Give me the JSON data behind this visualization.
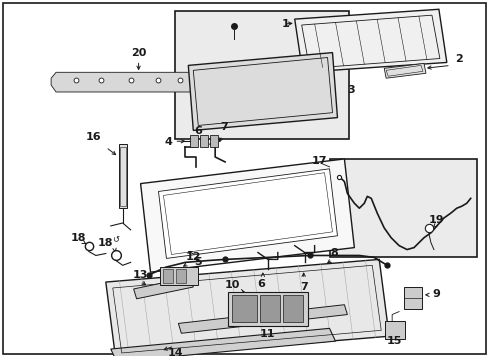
{
  "bg_color": "#ffffff",
  "fig_width": 4.89,
  "fig_height": 3.6,
  "dpi": 100,
  "line_color": "#1a1a1a",
  "gray_fill": "#e8e8e8",
  "box_fill": "#ebebeb"
}
